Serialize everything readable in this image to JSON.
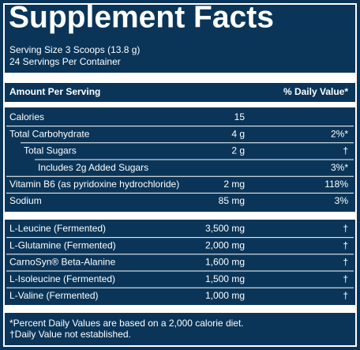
{
  "title": "Supplement Facts",
  "serving_size": "Serving Size 3 Scoops (13.8 g)",
  "servings_per_container": "24 Servings Per Container",
  "header": {
    "amount": "Amount Per Serving",
    "daily_value": "% Daily Value*"
  },
  "groups": [
    [
      {
        "name": "Calories",
        "amount": "15",
        "dv": ""
      },
      {
        "name": "Total Carbohydrate",
        "amount": "4 g",
        "dv": "2%*"
      },
      {
        "name": "Total Sugars",
        "amount": "2 g",
        "dv": "†"
      },
      {
        "name": "Includes 2g Added Sugars",
        "amount": "",
        "dv": "3%*"
      },
      {
        "name": "Vitamin B6 (as pyridoxine hydrochloride)",
        "amount": "2 mg",
        "dv": "118%"
      },
      {
        "name": "Sodium",
        "amount": "85 mg",
        "dv": "3%"
      }
    ],
    [
      {
        "name": "L-Leucine (Fermented)",
        "amount": "3,500 mg",
        "dv": "†"
      },
      {
        "name": "L-Glutamine (Fermented)",
        "amount": "2,000 mg",
        "dv": "†"
      },
      {
        "name": "CarnoSyn® Beta-Alanine",
        "amount": "1,600 mg",
        "dv": "†"
      },
      {
        "name": "L-Isoleucine (Fermented)",
        "amount": "1,500 mg",
        "dv": "†"
      },
      {
        "name": "L-Valine (Fermented)",
        "amount": "1,000 mg",
        "dv": "†"
      }
    ]
  ],
  "footnotes": [
    "*Percent Daily Values are based on a 2,000 calorie diet.",
    "†Daily Value not established."
  ]
}
